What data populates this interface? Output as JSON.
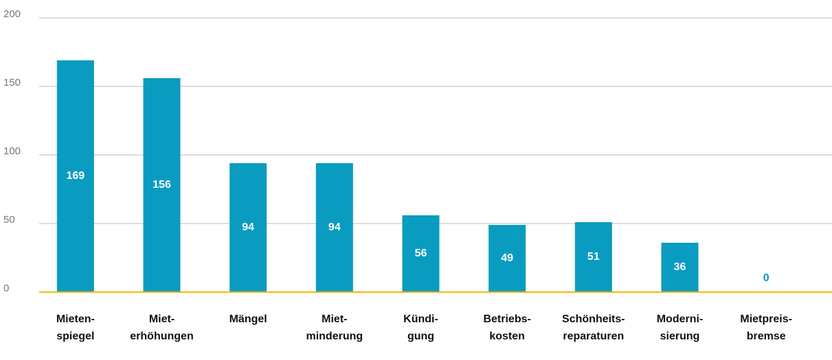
{
  "chart_data": {
    "type": "bar",
    "categories": [
      "Mieten-\nspiegel",
      "Miet-\nerhöhungen",
      "Mängel",
      "Miet-\nminderung",
      "Kündi-\ngung",
      "Betriebs-\nkosten",
      "Schönheits-\nreparaturen",
      "Moderni-\nsierung",
      "Mietpreis-\nbremse"
    ],
    "values": [
      169,
      156,
      94,
      94,
      56,
      49,
      51,
      36,
      0
    ],
    "color": "#0a9cc0",
    "axis_color": "#f5b80a",
    "ylim": [
      0,
      200
    ],
    "yticks": [
      0,
      50,
      100,
      150,
      200
    ],
    "grid": true
  }
}
